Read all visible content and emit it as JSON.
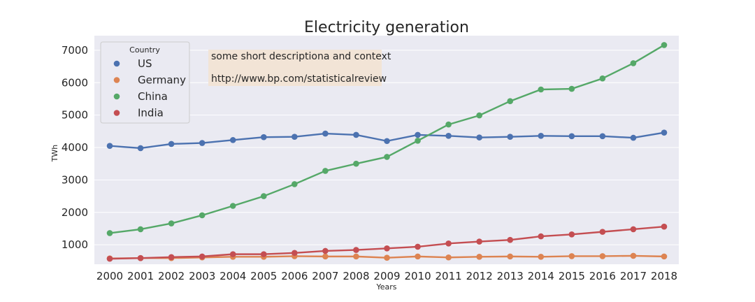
{
  "chart_data": {
    "type": "line",
    "title": "Electricity generation",
    "xlabel": "Years",
    "ylabel": "TWh",
    "x": [
      2000,
      2001,
      2002,
      2003,
      2004,
      2005,
      2006,
      2007,
      2008,
      2009,
      2010,
      2011,
      2012,
      2013,
      2014,
      2015,
      2016,
      2017,
      2018
    ],
    "yticks": [
      1000,
      2000,
      3000,
      4000,
      5000,
      6000,
      7000
    ],
    "ylim": [
      400,
      7450
    ],
    "grid": true,
    "legend": {
      "title": "Country",
      "placement": "top-left"
    },
    "series": [
      {
        "name": "US",
        "color": "#4c72b0",
        "values": [
          4050,
          3980,
          4110,
          4140,
          4230,
          4320,
          4330,
          4430,
          4390,
          4200,
          4390,
          4360,
          4310,
          4330,
          4360,
          4350,
          4350,
          4300,
          4460
        ]
      },
      {
        "name": "Germany",
        "color": "#dd8452",
        "values": [
          580,
          590,
          590,
          610,
          630,
          630,
          650,
          640,
          640,
          600,
          640,
          610,
          630,
          640,
          630,
          650,
          650,
          660,
          640
        ]
      },
      {
        "name": "China",
        "color": "#55a868",
        "values": [
          1360,
          1480,
          1660,
          1910,
          2200,
          2500,
          2870,
          3280,
          3500,
          3710,
          4210,
          4710,
          4990,
          5430,
          5790,
          5810,
          6130,
          6600,
          7160
        ]
      },
      {
        "name": "India",
        "color": "#c44e52",
        "values": [
          570,
          590,
          620,
          640,
          710,
          710,
          750,
          810,
          840,
          890,
          940,
          1040,
          1100,
          1150,
          1260,
          1320,
          1400,
          1480,
          1560
        ]
      }
    ],
    "annotation": {
      "lines": [
        "some short descriptiona and context",
        "http://www.bp.com/statisticalreview"
      ],
      "background": "#f2e4d6"
    },
    "style": {
      "plot_background": "#eaeaf2",
      "grid_color": "#ffffff"
    }
  }
}
